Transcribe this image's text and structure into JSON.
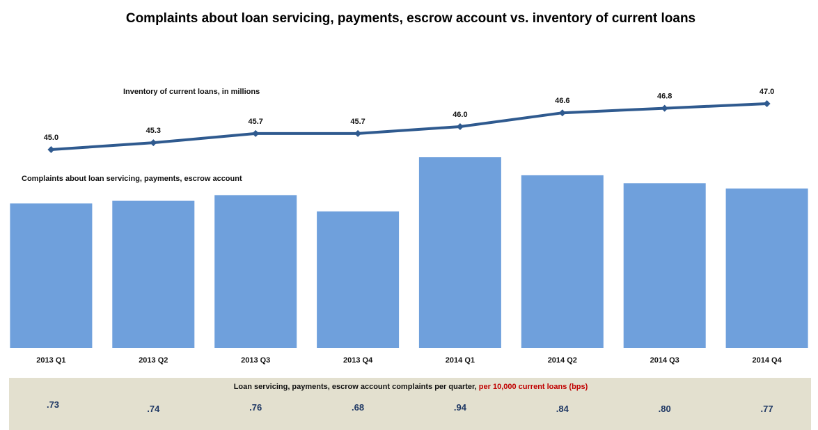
{
  "chart_data": {
    "type": "bar",
    "title": "Complaints about loan servicing, payments, escrow account  vs. inventory of current loans",
    "categories": [
      "2013 Q1",
      "2013 Q2",
      "2013 Q3",
      "2013 Q4",
      "2014 Q1",
      "2014 Q2",
      "2014 Q3",
      "2014 Q4"
    ],
    "bar_series": {
      "name": "Complaints about loan servicing, payments, escrow account",
      "values": [
        3280,
        3340,
        3470,
        3100,
        4330,
        3920,
        3740,
        3620
      ],
      "ylim": [
        0,
        4500
      ],
      "color": "#6fa0dc"
    },
    "line_series": {
      "name": "Inventory of current loans, in millions",
      "values": [
        45.0,
        45.3,
        45.7,
        45.7,
        46.0,
        46.6,
        46.8,
        47.0
      ],
      "labels": [
        "45.0",
        "45.3",
        "45.7",
        "45.7",
        "46.0",
        "46.6",
        "46.8",
        "47.0"
      ],
      "color": "#2f5a8f"
    },
    "rate_table": {
      "title_main": "Loan servicing, payments, escrow account complaints per quarter, ",
      "title_accent": "per 10,000 current loans (bps)",
      "values": [
        ".73",
        ".74",
        ".76",
        ".68",
        ".94",
        ".84",
        ".80",
        ".77"
      ],
      "background": "#e3e0cf"
    },
    "grid": false,
    "legend": "none"
  }
}
